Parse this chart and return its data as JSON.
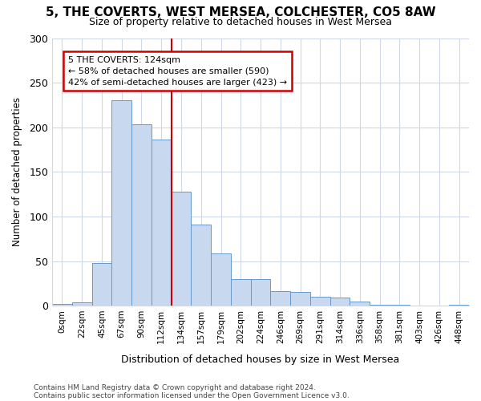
{
  "title1": "5, THE COVERTS, WEST MERSEA, COLCHESTER, CO5 8AW",
  "title2": "Size of property relative to detached houses in West Mersea",
  "xlabel": "Distribution of detached houses by size in West Mersea",
  "ylabel": "Number of detached properties",
  "categories": [
    "0sqm",
    "22sqm",
    "45sqm",
    "67sqm",
    "90sqm",
    "112sqm",
    "134sqm",
    "157sqm",
    "179sqm",
    "202sqm",
    "224sqm",
    "246sqm",
    "269sqm",
    "291sqm",
    "314sqm",
    "336sqm",
    "358sqm",
    "381sqm",
    "403sqm",
    "426sqm",
    "448sqm"
  ],
  "values": [
    2,
    4,
    48,
    230,
    203,
    186,
    128,
    91,
    59,
    30,
    30,
    16,
    15,
    10,
    9,
    5,
    1,
    1,
    0,
    0,
    1
  ],
  "bar_color": "#c8d9ef",
  "bar_edge_color": "#6699cc",
  "vline_color": "#cc0000",
  "annotation_title": "5 THE COVERTS: 124sqm",
  "annotation_line1": "← 58% of detached houses are smaller (590)",
  "annotation_line2": "42% of semi-detached houses are larger (423) →",
  "annotation_box_color": "#ffffff",
  "annotation_box_edge": "#cc0000",
  "ylim": [
    0,
    300
  ],
  "yticks": [
    0,
    50,
    100,
    150,
    200,
    250,
    300
  ],
  "footer1": "Contains HM Land Registry data © Crown copyright and database right 2024.",
  "footer2": "Contains public sector information licensed under the Open Government Licence v3.0.",
  "background_color": "#ffffff",
  "grid_color": "#d0d8e8"
}
